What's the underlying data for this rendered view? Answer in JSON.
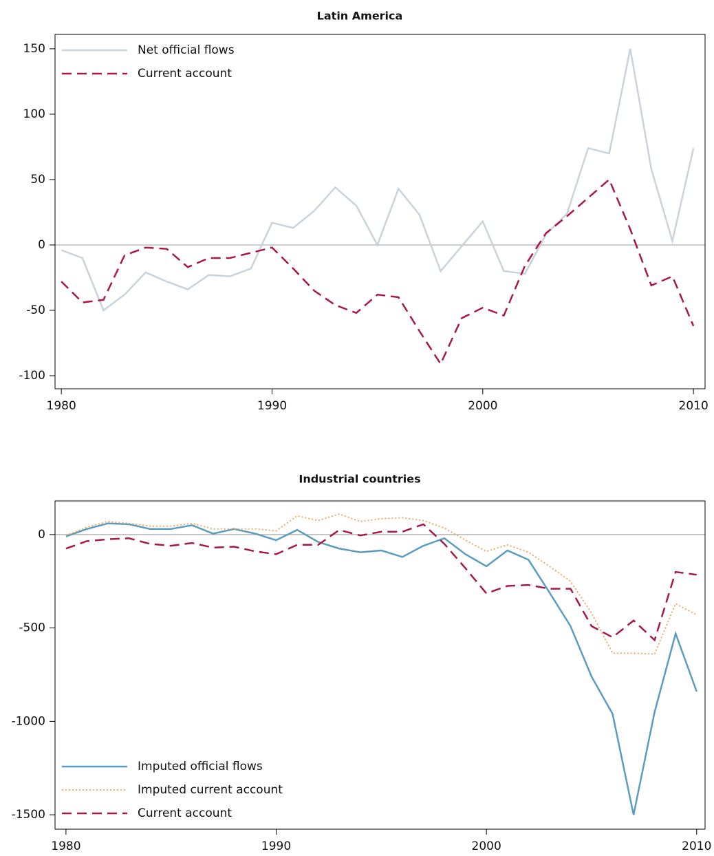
{
  "chart_data": [
    {
      "type": "line",
      "title": "Latin America",
      "x": [
        1980,
        1981,
        1982,
        1983,
        1984,
        1985,
        1986,
        1987,
        1988,
        1989,
        1990,
        1991,
        1992,
        1993,
        1994,
        1995,
        1996,
        1997,
        1998,
        1999,
        2000,
        2001,
        2002,
        2003,
        2004,
        2005,
        2006,
        2007,
        2008,
        2009,
        2010
      ],
      "series": [
        {
          "name": "Net official flows",
          "color": "#c8d3dc",
          "dash": "solid",
          "values": [
            -4,
            -10,
            -50,
            -38,
            -21,
            -28,
            -34,
            -23,
            -24,
            -18,
            17,
            13,
            26,
            44,
            30,
            0,
            43,
            23,
            -20,
            -1,
            18,
            -20,
            -22,
            8,
            24,
            74,
            70,
            150,
            58,
            3,
            74
          ]
        },
        {
          "name": "Current account",
          "color": "#a8174a",
          "dash": "dashed",
          "values": [
            -28,
            -44,
            -42,
            -8,
            -2,
            -3,
            -17,
            -10,
            -10,
            -6,
            -2,
            -18,
            -35,
            -46,
            -52,
            -38,
            -40,
            -66,
            -91,
            -56,
            -48,
            -54,
            -16,
            9,
            22,
            36,
            50,
            12,
            -31,
            -24,
            -62
          ]
        }
      ],
      "xlim": [
        1979.7,
        2010.55
      ],
      "xticks": [
        1980,
        1990,
        2000,
        2010
      ],
      "ylim": [
        -110,
        161
      ],
      "yticks": [
        -100,
        -50,
        0,
        50,
        100,
        150
      ],
      "legend": "upper left"
    },
    {
      "type": "line",
      "title": "Industrial countries",
      "x": [
        1980,
        1981,
        1982,
        1983,
        1984,
        1985,
        1986,
        1987,
        1988,
        1989,
        1990,
        1991,
        1992,
        1993,
        1994,
        1995,
        1996,
        1997,
        1998,
        1999,
        2000,
        2001,
        2002,
        2003,
        2004,
        2005,
        2006,
        2007,
        2008,
        2009,
        2010
      ],
      "series": [
        {
          "name": "Imputed official flows",
          "color": "#5a9cbf",
          "dash": "solid",
          "values": [
            -10,
            30,
            60,
            55,
            30,
            30,
            50,
            5,
            30,
            5,
            -30,
            25,
            -40,
            -75,
            -95,
            -85,
            -120,
            -60,
            -20,
            -105,
            -170,
            -85,
            -135,
            -310,
            -490,
            -760,
            -960,
            -1500,
            -950,
            -530,
            -840
          ]
        },
        {
          "name": "Imputed current account",
          "color": "#f0a050",
          "dash": "dotted",
          "values": [
            -5,
            40,
            70,
            60,
            45,
            45,
            60,
            30,
            30,
            30,
            20,
            100,
            75,
            110,
            70,
            85,
            90,
            75,
            35,
            -30,
            -90,
            -55,
            -95,
            -170,
            -250,
            -420,
            -635,
            -635,
            -640,
            -370,
            -430
          ]
        },
        {
          "name": "Current account",
          "color": "#a8174a",
          "dash": "dashed",
          "values": [
            -75,
            -35,
            -25,
            -20,
            -50,
            -60,
            -45,
            -70,
            -65,
            -90,
            -105,
            -55,
            -55,
            25,
            -5,
            15,
            15,
            55,
            -50,
            -180,
            -315,
            -275,
            -270,
            -290,
            -290,
            -490,
            -550,
            -460,
            -565,
            -200,
            -215
          ]
        }
      ],
      "xlim": [
        1979.48,
        2010.4
      ],
      "xticks": [
        1980,
        1990,
        2000,
        2010
      ],
      "ylim": [
        -1577,
        180
      ],
      "yticks": [
        -1500,
        -1000,
        -500,
        0
      ],
      "legend": "lower left"
    }
  ]
}
